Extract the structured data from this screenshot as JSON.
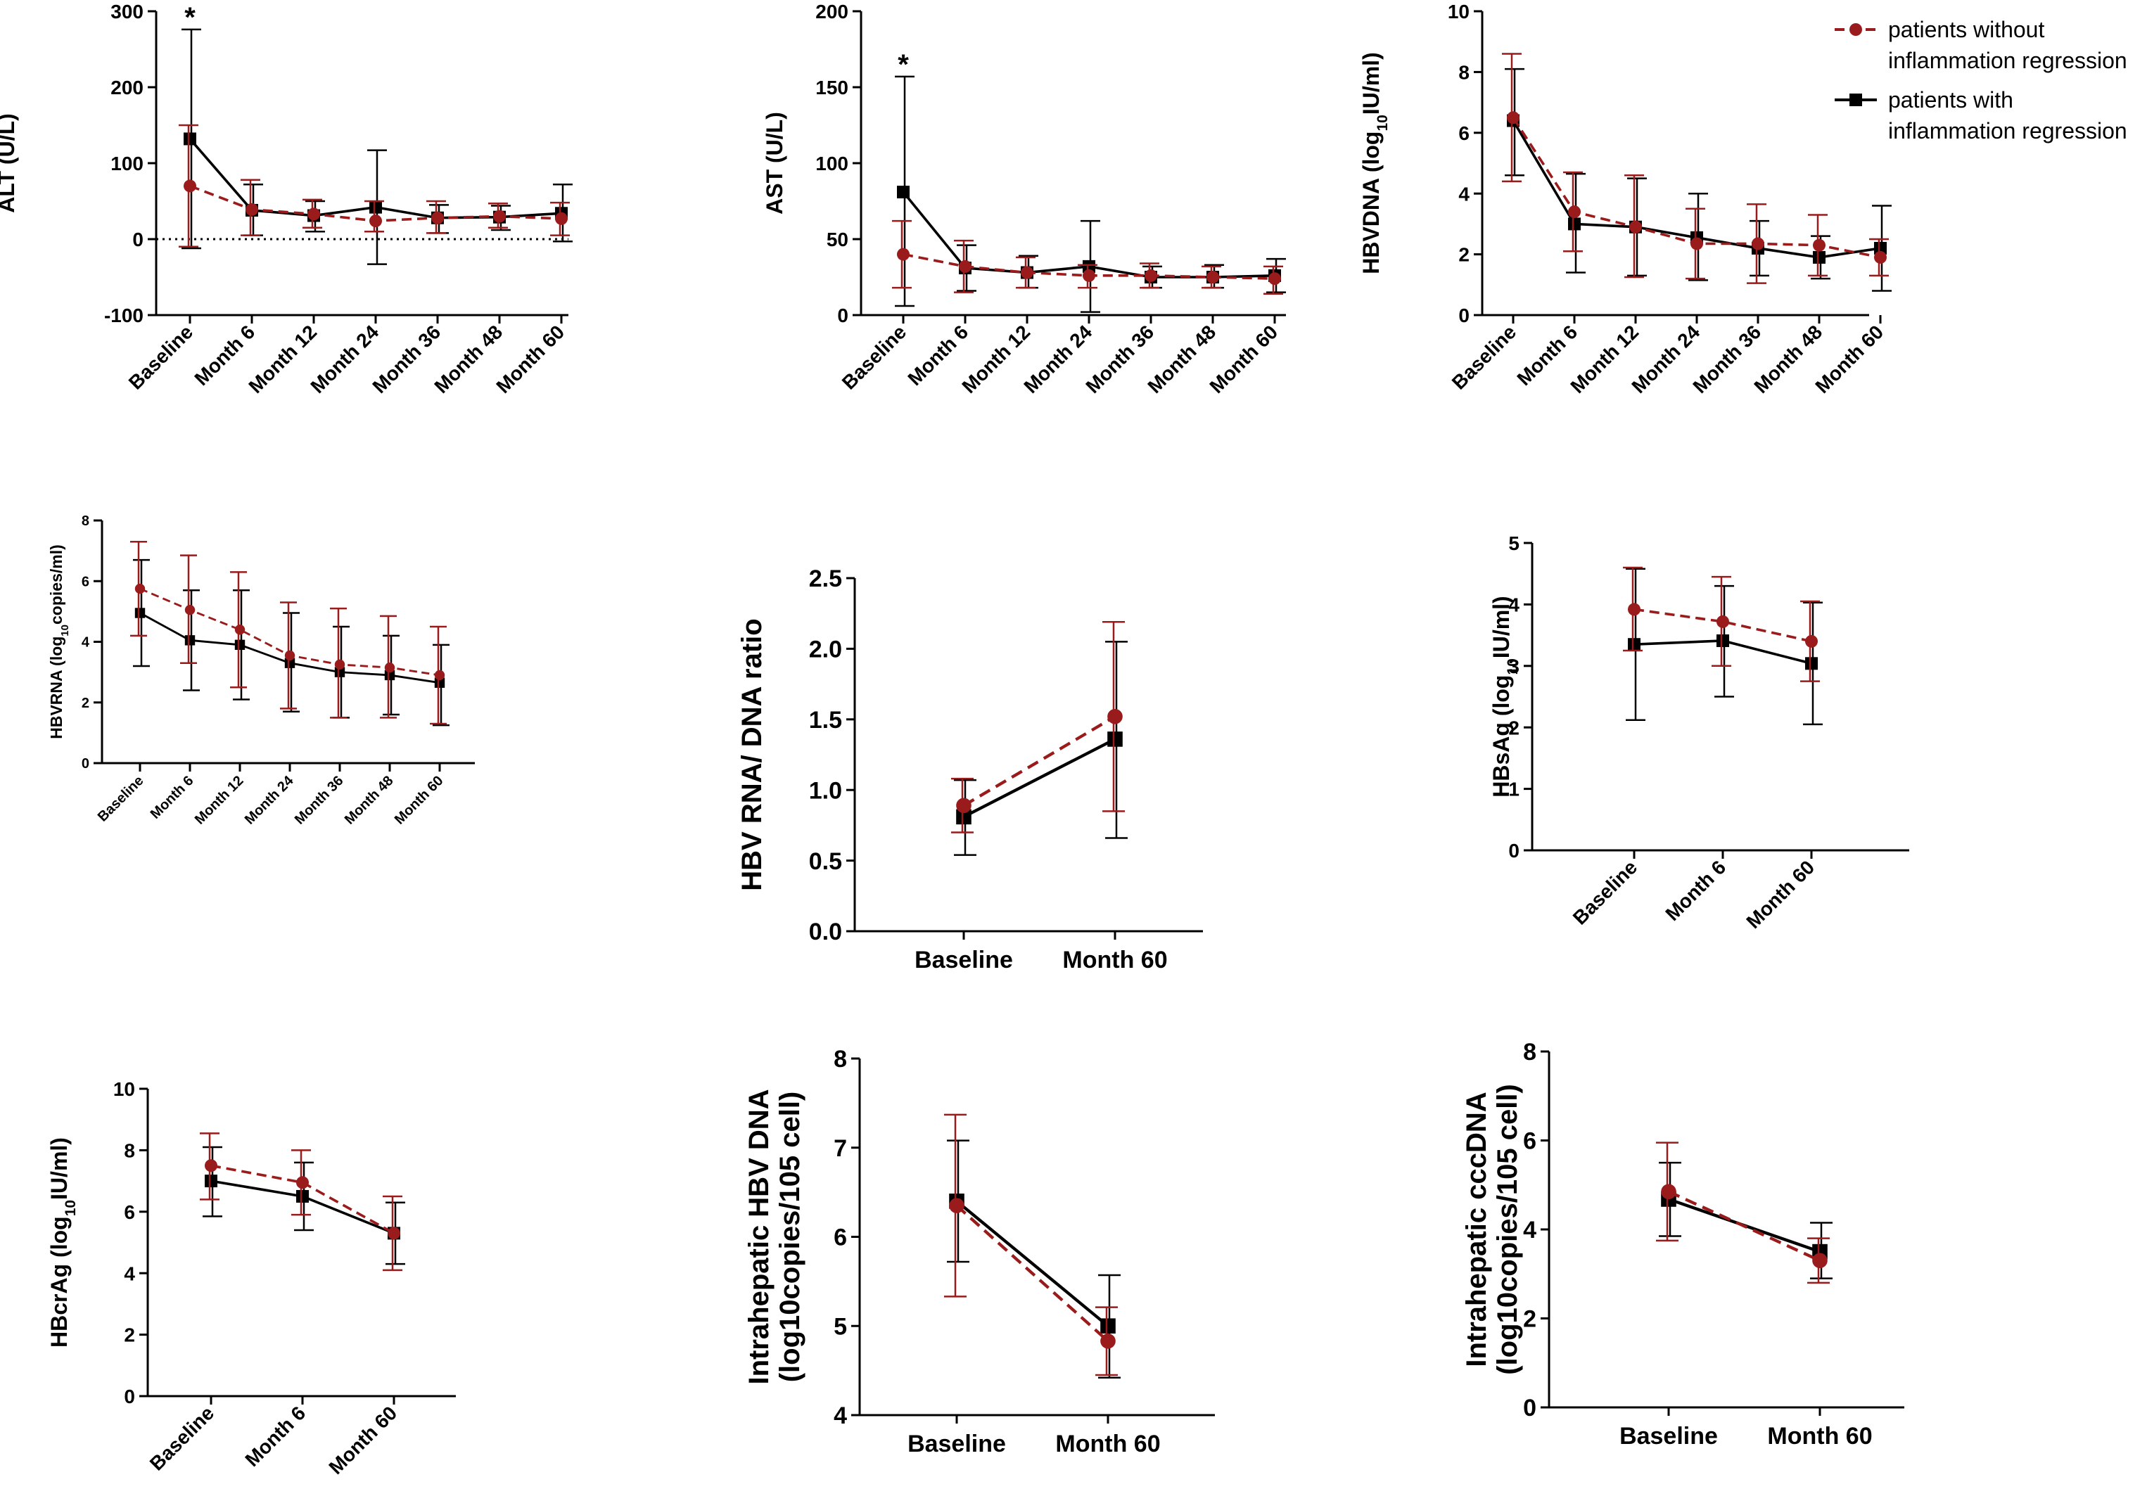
{
  "legend": {
    "entries": [
      {
        "label_line1": "patients without",
        "label_line2": "inflammation regression",
        "series": "without",
        "color": "#9a1b1b",
        "dashed": true,
        "marker": "circle"
      },
      {
        "label_line1": "patients with",
        "label_line2": "inflammation regression",
        "series": "with",
        "color": "#000000",
        "dashed": false,
        "marker": "square"
      }
    ]
  },
  "chart_data": [
    {
      "id": "alt",
      "type": "line",
      "ylabel": "ALT (U/L)",
      "categories": [
        "Baseline",
        "Month 6",
        "Month 12",
        "Month 24",
        "Month 36",
        "Month 48",
        "Month 60"
      ],
      "ylim": [
        -100,
        300
      ],
      "yticks": [
        -100,
        0,
        100,
        200,
        300
      ],
      "zero_line": true,
      "annotations": [
        {
          "text": "*",
          "category": "Baseline"
        }
      ],
      "series": [
        {
          "name": "patients without inflammation regression",
          "values": [
            70,
            39,
            33,
            24,
            28,
            30,
            27
          ],
          "err_low": [
            -10,
            5,
            15,
            10,
            8,
            15,
            5
          ],
          "err_high": [
            150,
            78,
            52,
            50,
            50,
            47,
            48
          ]
        },
        {
          "name": "patients with inflammation regression",
          "values": [
            132,
            38,
            31,
            42,
            28,
            29,
            34
          ],
          "err_low": [
            -12,
            5,
            10,
            -33,
            8,
            12,
            -3
          ],
          "err_high": [
            276,
            72,
            50,
            117,
            45,
            44,
            72
          ]
        }
      ]
    },
    {
      "id": "ast",
      "type": "line",
      "ylabel": "AST (U/L)",
      "categories": [
        "Baseline",
        "Month 6",
        "Month 12",
        "Month 24",
        "Month 36",
        "Month 48",
        "Month 60"
      ],
      "ylim": [
        0,
        200
      ],
      "yticks": [
        0,
        50,
        100,
        150,
        200
      ],
      "annotations": [
        {
          "text": "*",
          "category": "Baseline"
        }
      ],
      "series": [
        {
          "name": "patients without inflammation regression",
          "values": [
            40,
            32,
            28,
            26,
            26,
            25,
            24
          ],
          "err_low": [
            18,
            15,
            18,
            18,
            18,
            18,
            14
          ],
          "err_high": [
            62,
            49,
            38,
            33,
            34,
            32,
            32
          ]
        },
        {
          "name": "patients with inflammation regression",
          "values": [
            81,
            31,
            28,
            32,
            25,
            25,
            26
          ],
          "err_low": [
            6,
            16,
            18,
            2,
            18,
            18,
            15
          ],
          "err_high": [
            157,
            46,
            39,
            62,
            32,
            33,
            37
          ]
        }
      ]
    },
    {
      "id": "hbvdna",
      "type": "line",
      "ylabel_parts": [
        "HBVDNA (log",
        "10",
        "IU/ml)"
      ],
      "categories": [
        "Baseline",
        "Month 6",
        "Month 12",
        "Month 24",
        "Month 36",
        "Month 48",
        "Month 60"
      ],
      "ylim": [
        0,
        10
      ],
      "yticks": [
        0,
        2,
        4,
        6,
        8,
        10
      ],
      "series": [
        {
          "name": "patients without inflammation regression",
          "values": [
            6.5,
            3.4,
            2.9,
            2.35,
            2.35,
            2.3,
            1.9
          ],
          "err_low": [
            4.4,
            2.1,
            1.25,
            1.2,
            1.05,
            1.3,
            1.3
          ],
          "err_high": [
            8.6,
            4.7,
            4.6,
            3.5,
            3.65,
            3.3,
            2.5
          ]
        },
        {
          "name": "patients with inflammation regression",
          "values": [
            6.4,
            3.0,
            2.9,
            2.55,
            2.2,
            1.9,
            2.2
          ],
          "err_low": [
            4.6,
            1.4,
            1.3,
            1.15,
            1.3,
            1.2,
            0.8
          ],
          "err_high": [
            8.1,
            4.65,
            4.5,
            4.0,
            3.1,
            2.6,
            3.6
          ]
        }
      ]
    },
    {
      "id": "hbvrna",
      "type": "line",
      "ylabel_parts": [
        "HBVRNA (log",
        "10",
        "copies/ml)"
      ],
      "categories": [
        "Baseline",
        "Month 6",
        "Month 12",
        "Month 24",
        "Month 36",
        "Month 48",
        "Month 60"
      ],
      "ylim": [
        0,
        8
      ],
      "yticks": [
        0,
        2,
        4,
        6,
        8
      ],
      "series": [
        {
          "name": "patients without inflammation regression",
          "values": [
            5.75,
            5.05,
            4.4,
            3.55,
            3.25,
            3.15,
            2.9
          ],
          "err_low": [
            4.2,
            3.3,
            2.5,
            1.8,
            1.5,
            1.5,
            1.3
          ],
          "err_high": [
            7.3,
            6.85,
            6.3,
            5.3,
            5.1,
            4.85,
            4.5
          ]
        },
        {
          "name": "patients with inflammation regression",
          "values": [
            4.95,
            4.05,
            3.9,
            3.3,
            3.0,
            2.9,
            2.65
          ],
          "err_low": [
            3.2,
            2.4,
            2.1,
            1.7,
            1.5,
            1.6,
            1.25
          ],
          "err_high": [
            6.7,
            5.7,
            5.7,
            4.95,
            4.5,
            4.2,
            3.9
          ]
        }
      ]
    },
    {
      "id": "ratio",
      "type": "line",
      "ylabel": "HBV RNA/ DNA ratio",
      "categories": [
        "Baseline",
        "Month 60"
      ],
      "ylim": [
        0,
        2.5
      ],
      "yticks": [
        0.0,
        0.5,
        1.0,
        1.5,
        2.0,
        2.5
      ],
      "tick_decimals": 1,
      "series": [
        {
          "name": "patients without inflammation regression",
          "values": [
            0.89,
            1.52
          ],
          "err_low": [
            0.7,
            0.85
          ],
          "err_high": [
            1.08,
            2.19
          ]
        },
        {
          "name": "patients with inflammation regression",
          "values": [
            0.81,
            1.36
          ],
          "err_low": [
            0.54,
            0.66
          ],
          "err_high": [
            1.07,
            2.05
          ]
        }
      ]
    },
    {
      "id": "hbsag",
      "type": "line",
      "ylabel_parts": [
        "HBsAg (log",
        "10",
        "IU/ml)"
      ],
      "categories": [
        "Baseline",
        "Month 6",
        "Month 60"
      ],
      "ylim": [
        0,
        5
      ],
      "yticks": [
        0,
        1,
        2,
        3,
        4,
        5
      ],
      "series": [
        {
          "name": "patients without inflammation regression",
          "values": [
            3.92,
            3.72,
            3.4
          ],
          "err_low": [
            3.25,
            3.0,
            2.75
          ],
          "err_high": [
            4.6,
            4.45,
            4.05
          ]
        },
        {
          "name": "patients with inflammation regression",
          "values": [
            3.35,
            3.41,
            3.04
          ],
          "err_low": [
            2.12,
            2.5,
            2.05
          ],
          "err_high": [
            4.58,
            4.3,
            4.03
          ]
        }
      ]
    },
    {
      "id": "hbcrag",
      "type": "line",
      "ylabel_parts": [
        "HBcrAg (log",
        "10",
        "IU/ml)"
      ],
      "categories": [
        "Baseline",
        "Month 6",
        "Month 60"
      ],
      "ylim": [
        0,
        10
      ],
      "yticks": [
        0,
        2,
        4,
        6,
        8,
        10
      ],
      "series": [
        {
          "name": "patients without inflammation regression",
          "values": [
            7.5,
            6.95,
            5.3
          ],
          "err_low": [
            6.4,
            5.9,
            4.1
          ],
          "err_high": [
            8.55,
            8.0,
            6.5
          ]
        },
        {
          "name": "patients with inflammation regression",
          "values": [
            7.0,
            6.5,
            5.3
          ],
          "err_low": [
            5.85,
            5.4,
            4.3
          ],
          "err_high": [
            8.1,
            7.6,
            6.3
          ]
        }
      ]
    },
    {
      "id": "ihdna",
      "type": "line",
      "ylabel_line1": "Intrahepatic HBV DNA",
      "ylabel_line2": "(log10copies/105 cell)",
      "categories": [
        "Baseline",
        "Month 60"
      ],
      "ylim": [
        4,
        8
      ],
      "yticks": [
        4,
        5,
        6,
        7,
        8
      ],
      "series": [
        {
          "name": "patients without inflammation regression",
          "values": [
            6.35,
            4.83
          ],
          "err_low": [
            5.33,
            4.45
          ],
          "err_high": [
            7.37,
            5.21
          ]
        },
        {
          "name": "patients with inflammation regression",
          "values": [
            6.4,
            5.0
          ],
          "err_low": [
            5.72,
            4.42
          ],
          "err_high": [
            7.08,
            5.57
          ]
        }
      ]
    },
    {
      "id": "cccdna",
      "type": "line",
      "ylabel_line1": "Intrahepatic cccDNA",
      "ylabel_line2": "(log10copies/105 cell)",
      "categories": [
        "Baseline",
        "Month 60"
      ],
      "ylim": [
        0,
        8
      ],
      "yticks": [
        0,
        2,
        4,
        6,
        8
      ],
      "series": [
        {
          "name": "patients without inflammation regression",
          "values": [
            4.85,
            3.3
          ],
          "err_low": [
            3.75,
            2.8
          ],
          "err_high": [
            5.95,
            3.8
          ]
        },
        {
          "name": "patients with inflammation regression",
          "values": [
            4.68,
            3.5
          ],
          "err_low": [
            3.85,
            2.9
          ],
          "err_high": [
            5.5,
            4.15
          ]
        }
      ]
    }
  ]
}
